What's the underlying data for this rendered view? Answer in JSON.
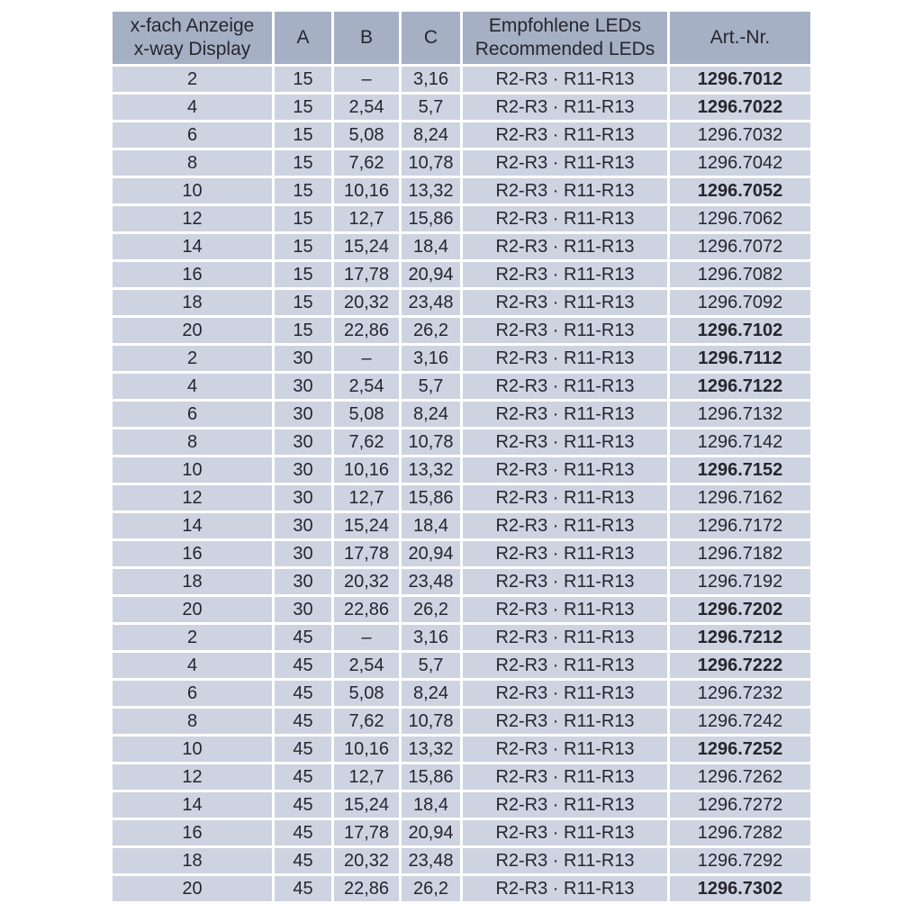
{
  "colors": {
    "page_background": "#ffffff",
    "header_background": "#a6b0c4",
    "row_background": "#cdd3e0",
    "gridline": "#ffffff",
    "text": "#26262e"
  },
  "table": {
    "headers": {
      "display_line1": "x-fach Anzeige",
      "display_line2": "x-way Display",
      "a": "A",
      "b": "B",
      "c": "C",
      "leds_line1": "Empfohlene LEDs",
      "leds_line2": "Recommended LEDs",
      "art": "Art.-Nr."
    },
    "rows": [
      {
        "display": "2",
        "a": "15",
        "b": "–",
        "c": "3,16",
        "leds": "R2-R3 · R11-R13",
        "art": "1296.7012",
        "bold": true
      },
      {
        "display": "4",
        "a": "15",
        "b": "2,54",
        "c": "5,7",
        "leds": "R2-R3 · R11-R13",
        "art": "1296.7022",
        "bold": true
      },
      {
        "display": "6",
        "a": "15",
        "b": "5,08",
        "c": "8,24",
        "leds": "R2-R3 · R11-R13",
        "art": "1296.7032",
        "bold": false
      },
      {
        "display": "8",
        "a": "15",
        "b": "7,62",
        "c": "10,78",
        "leds": "R2-R3 · R11-R13",
        "art": "1296.7042",
        "bold": false
      },
      {
        "display": "10",
        "a": "15",
        "b": "10,16",
        "c": "13,32",
        "leds": "R2-R3 · R11-R13",
        "art": "1296.7052",
        "bold": true
      },
      {
        "display": "12",
        "a": "15",
        "b": "12,7",
        "c": "15,86",
        "leds": "R2-R3 · R11-R13",
        "art": "1296.7062",
        "bold": false
      },
      {
        "display": "14",
        "a": "15",
        "b": "15,24",
        "c": "18,4",
        "leds": "R2-R3 · R11-R13",
        "art": "1296.7072",
        "bold": false
      },
      {
        "display": "16",
        "a": "15",
        "b": "17,78",
        "c": "20,94",
        "leds": "R2-R3 · R11-R13",
        "art": "1296.7082",
        "bold": false
      },
      {
        "display": "18",
        "a": "15",
        "b": "20,32",
        "c": "23,48",
        "leds": "R2-R3 · R11-R13",
        "art": "1296.7092",
        "bold": false
      },
      {
        "display": "20",
        "a": "15",
        "b": "22,86",
        "c": "26,2",
        "leds": "R2-R3 · R11-R13",
        "art": "1296.7102",
        "bold": true
      },
      {
        "display": "2",
        "a": "30",
        "b": "–",
        "c": "3,16",
        "leds": "R2-R3 · R11-R13",
        "art": "1296.7112",
        "bold": true
      },
      {
        "display": "4",
        "a": "30",
        "b": "2,54",
        "c": "5,7",
        "leds": "R2-R3 · R11-R13",
        "art": "1296.7122",
        "bold": true
      },
      {
        "display": "6",
        "a": "30",
        "b": "5,08",
        "c": "8,24",
        "leds": "R2-R3 · R11-R13",
        "art": "1296.7132",
        "bold": false
      },
      {
        "display": "8",
        "a": "30",
        "b": "7,62",
        "c": "10,78",
        "leds": "R2-R3 · R11-R13",
        "art": "1296.7142",
        "bold": false
      },
      {
        "display": "10",
        "a": "30",
        "b": "10,16",
        "c": "13,32",
        "leds": "R2-R3 · R11-R13",
        "art": "1296.7152",
        "bold": true
      },
      {
        "display": "12",
        "a": "30",
        "b": "12,7",
        "c": "15,86",
        "leds": "R2-R3 · R11-R13",
        "art": "1296.7162",
        "bold": false
      },
      {
        "display": "14",
        "a": "30",
        "b": "15,24",
        "c": "18,4",
        "leds": "R2-R3 · R11-R13",
        "art": "1296.7172",
        "bold": false
      },
      {
        "display": "16",
        "a": "30",
        "b": "17,78",
        "c": "20,94",
        "leds": "R2-R3 · R11-R13",
        "art": "1296.7182",
        "bold": false
      },
      {
        "display": "18",
        "a": "30",
        "b": "20,32",
        "c": "23,48",
        "leds": "R2-R3 · R11-R13",
        "art": "1296.7192",
        "bold": false
      },
      {
        "display": "20",
        "a": "30",
        "b": "22,86",
        "c": "26,2",
        "leds": "R2-R3 · R11-R13",
        "art": "1296.7202",
        "bold": true
      },
      {
        "display": "2",
        "a": "45",
        "b": "–",
        "c": "3,16",
        "leds": "R2-R3 · R11-R13",
        "art": "1296.7212",
        "bold": true
      },
      {
        "display": "4",
        "a": "45",
        "b": "2,54",
        "c": "5,7",
        "leds": "R2-R3 · R11-R13",
        "art": "1296.7222",
        "bold": true
      },
      {
        "display": "6",
        "a": "45",
        "b": "5,08",
        "c": "8,24",
        "leds": "R2-R3 · R11-R13",
        "art": "1296.7232",
        "bold": false
      },
      {
        "display": "8",
        "a": "45",
        "b": "7,62",
        "c": "10,78",
        "leds": "R2-R3 · R11-R13",
        "art": "1296.7242",
        "bold": false
      },
      {
        "display": "10",
        "a": "45",
        "b": "10,16",
        "c": "13,32",
        "leds": "R2-R3 · R11-R13",
        "art": "1296.7252",
        "bold": true
      },
      {
        "display": "12",
        "a": "45",
        "b": "12,7",
        "c": "15,86",
        "leds": "R2-R3 · R11-R13",
        "art": "1296.7262",
        "bold": false
      },
      {
        "display": "14",
        "a": "45",
        "b": "15,24",
        "c": "18,4",
        "leds": "R2-R3 · R11-R13",
        "art": "1296.7272",
        "bold": false
      },
      {
        "display": "16",
        "a": "45",
        "b": "17,78",
        "c": "20,94",
        "leds": "R2-R3 · R11-R13",
        "art": "1296.7282",
        "bold": false
      },
      {
        "display": "18",
        "a": "45",
        "b": "20,32",
        "c": "23,48",
        "leds": "R2-R3 · R11-R13",
        "art": "1296.7292",
        "bold": false
      },
      {
        "display": "20",
        "a": "45",
        "b": "22,86",
        "c": "26,2",
        "leds": "R2-R3 · R11-R13",
        "art": "1296.7302",
        "bold": true
      }
    ]
  }
}
